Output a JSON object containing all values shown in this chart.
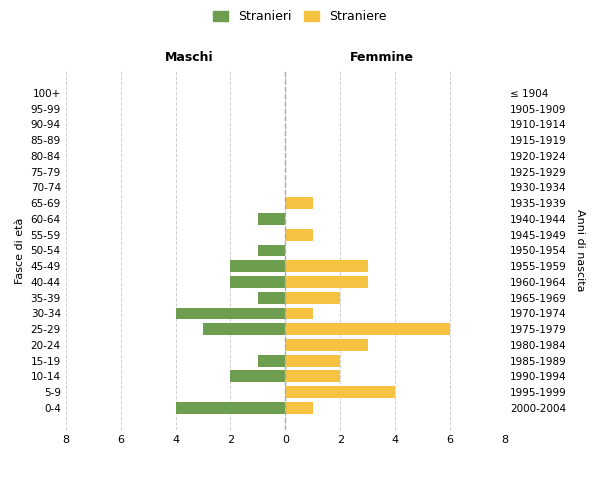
{
  "age_groups": [
    "100+",
    "95-99",
    "90-94",
    "85-89",
    "80-84",
    "75-79",
    "70-74",
    "65-69",
    "60-64",
    "55-59",
    "50-54",
    "45-49",
    "40-44",
    "35-39",
    "30-34",
    "25-29",
    "20-24",
    "15-19",
    "10-14",
    "5-9",
    "0-4"
  ],
  "birth_years": [
    "≤ 1904",
    "1905-1909",
    "1910-1914",
    "1915-1919",
    "1920-1924",
    "1925-1929",
    "1930-1934",
    "1935-1939",
    "1940-1944",
    "1945-1949",
    "1950-1954",
    "1955-1959",
    "1960-1964",
    "1965-1969",
    "1970-1974",
    "1975-1979",
    "1980-1984",
    "1985-1989",
    "1990-1994",
    "1995-1999",
    "2000-2004"
  ],
  "maschi": [
    0,
    0,
    0,
    0,
    0,
    0,
    0,
    0,
    1,
    0,
    1,
    2,
    2,
    1,
    4,
    3,
    0,
    1,
    2,
    0,
    4
  ],
  "femmine": [
    0,
    0,
    0,
    0,
    0,
    0,
    0,
    1,
    0,
    1,
    0,
    3,
    3,
    2,
    1,
    6,
    3,
    2,
    2,
    4,
    1
  ],
  "color_maschi": "#6d9e4f",
  "color_femmine": "#f5c242",
  "xlabel_left": "Maschi",
  "xlabel_right": "Femmine",
  "ylabel_left": "Fasce di età",
  "ylabel_right": "Anni di nascita",
  "legend_maschi": "Stranieri",
  "legend_femmine": "Straniere",
  "xlim": 8,
  "bg_color": "#ffffff",
  "grid_color": "#d0d0d0",
  "bar_height": 0.75
}
